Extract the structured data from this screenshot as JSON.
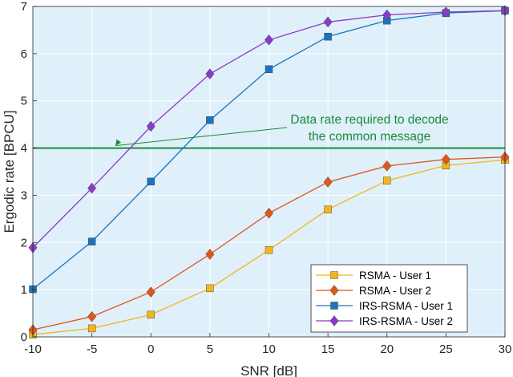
{
  "chart_data": {
    "type": "line",
    "xlabel": "SNR [dB]",
    "ylabel": "Ergodic rate [BPCU]",
    "xlim": [
      -10,
      30
    ],
    "ylim": [
      0,
      7
    ],
    "xticks": [
      -10,
      -5,
      0,
      5,
      10,
      15,
      20,
      25,
      30
    ],
    "yticks": [
      0,
      1,
      2,
      3,
      4,
      5,
      6,
      7
    ],
    "grid": true,
    "legend_position": "bottom-right",
    "background_color": "#dff0fa",
    "x": [
      -10,
      -5,
      0,
      5,
      10,
      15,
      20,
      25,
      30
    ],
    "series": [
      {
        "name": "RSMA - User 1",
        "marker": "square",
        "color": "#f2b61a",
        "values": [
          0.05,
          0.18,
          0.47,
          1.03,
          1.84,
          2.7,
          3.31,
          3.63,
          3.75
        ]
      },
      {
        "name": "RSMA - User 2",
        "marker": "diamond",
        "color": "#e0561b",
        "values": [
          0.15,
          0.43,
          0.95,
          1.75,
          2.62,
          3.28,
          3.62,
          3.76,
          3.81
        ]
      },
      {
        "name": "IRS-RSMA - User 1",
        "marker": "square",
        "color": "#1b74bc",
        "values": [
          1.01,
          2.02,
          3.29,
          4.59,
          5.67,
          6.36,
          6.7,
          6.86,
          6.91
        ]
      },
      {
        "name": "IRS-RSMA - User 2",
        "marker": "diamond",
        "color": "#8c3cc4",
        "values": [
          1.89,
          3.15,
          4.46,
          5.57,
          6.29,
          6.67,
          6.82,
          6.88,
          6.91
        ]
      }
    ],
    "reference_line": {
      "y": 4,
      "color": "#1a8a3a"
    },
    "annotation": {
      "lines": [
        "Data rate required to decode",
        "the common message"
      ],
      "color": "#1a8a3a",
      "arrow_to": [
        -3,
        4
      ]
    }
  }
}
